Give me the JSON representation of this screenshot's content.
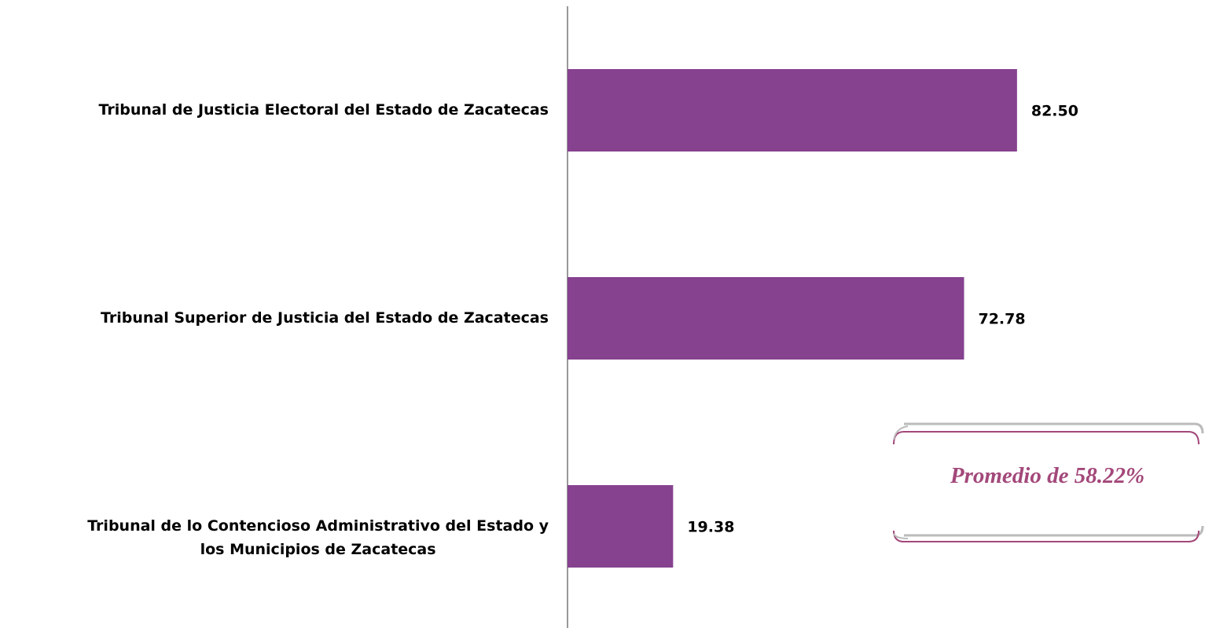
{
  "chart_data": {
    "type": "bar",
    "orientation": "horizontal",
    "categories": [
      "Tribunal de Justicia Electoral del Estado de Zacatecas",
      "Tribunal Superior de Justicia del Estado de Zacatecas",
      "Tribunal de lo Contencioso Administrativo del Estado y\nlos Municipios de Zacatecas"
    ],
    "values": [
      82.5,
      72.78,
      19.38
    ],
    "value_labels": [
      "82.50",
      "72.78",
      "19.38"
    ],
    "color": "#86418f",
    "xlim": [
      0,
      117
    ],
    "annotation": "Promedio de 58.22%"
  }
}
